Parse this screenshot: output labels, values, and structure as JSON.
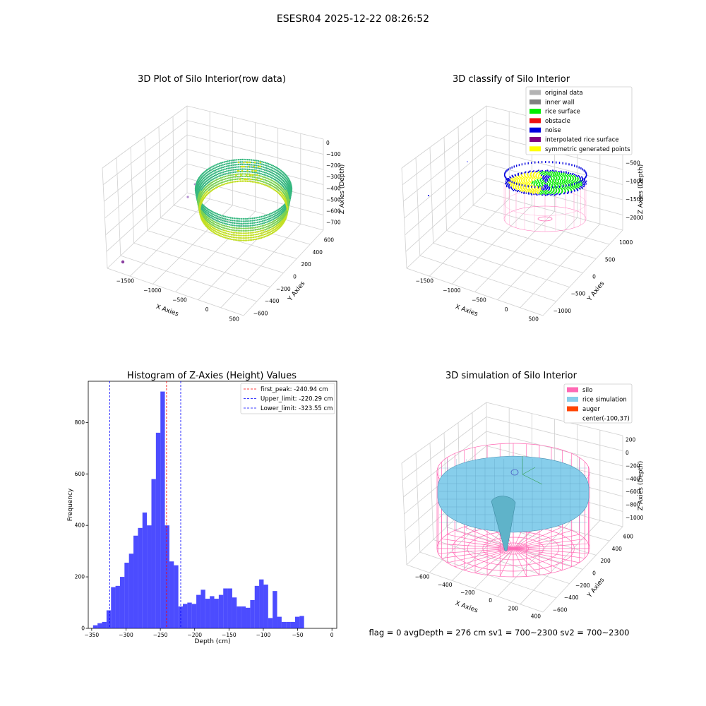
{
  "suptitle": "ESESR04 2025-12-22 08:26:52",
  "panels": {
    "raw": {
      "title": "3D Plot of Silo Interior(row data)",
      "xlabel": "X Axies",
      "ylabel": "Y Axies",
      "zlabel": "Z Axies (Depth)",
      "xticks": [
        "−1500",
        "−1000",
        "−500",
        "0",
        "500"
      ],
      "yticks": [
        "−600",
        "−400",
        "−200",
        "0",
        "200",
        "400",
        "600"
      ],
      "zticks": [
        "0",
        "−100",
        "−200",
        "−300",
        "−400",
        "−500",
        "−600",
        "−700"
      ]
    },
    "classify": {
      "title": "3D classify of Silo Interior",
      "xlabel": "X Axies",
      "ylabel": "Y Axies",
      "zlabel": "Z Axies (Depth)",
      "xticks": [
        "−1500",
        "−1000",
        "−500",
        "0",
        "500"
      ],
      "yticks": [
        "−1000",
        "−500",
        "0",
        "500",
        "1000"
      ],
      "zticks": [
        "0",
        "−500",
        "−1000",
        "−1500",
        "−2000"
      ],
      "legend": [
        {
          "label": "original data",
          "color": "#b3b3b3"
        },
        {
          "label": "inner wall",
          "color": "#808080"
        },
        {
          "label": "rice surface",
          "color": "#00ee00"
        },
        {
          "label": "obstacle",
          "color": "#ee1111"
        },
        {
          "label": "noise",
          "color": "#0000dd"
        },
        {
          "label": "interpolated rice surface",
          "color": "#800080"
        },
        {
          "label": "symmetric generated points",
          "color": "#ffff00"
        }
      ]
    },
    "simulation": {
      "title": "3D simulation of Silo Interior",
      "xlabel": "X Axies",
      "ylabel": "Y Axies",
      "zlabel": "Z Axies (Depth)",
      "xticks": [
        "−600",
        "−400",
        "−200",
        "0",
        "200",
        "400"
      ],
      "yticks": [
        "−600",
        "−400",
        "−200",
        "0",
        "200",
        "400",
        "600"
      ],
      "zticks": [
        "200",
        "0",
        "−200",
        "−400",
        "−600",
        "−800",
        "−1000"
      ],
      "legend": [
        {
          "label": "silo",
          "color": "#ff69b4"
        },
        {
          "label": "rice simulation",
          "color": "#87ceeb"
        },
        {
          "label": "auger",
          "color": "#ff4500"
        },
        {
          "label": "center(-100,37)",
          "color": ""
        }
      ],
      "footer": "flag = 0     avgDepth = 276 cm  sv1 = 700~2300  sv2 = 700~2300"
    }
  },
  "chart_data": {
    "type": "bar",
    "title": "Histogram of Z-Axies (Height) Values",
    "xlabel": "Depth (cm)",
    "ylabel": "Frequency",
    "xlim": [
      -355,
      7
    ],
    "ylim": [
      0,
      960
    ],
    "xticks": [
      -350,
      -300,
      -250,
      -200,
      -150,
      -100,
      -50,
      0
    ],
    "yticks": [
      0,
      200,
      400,
      600,
      800
    ],
    "bar_color": "#0000ff",
    "bins_start": -348,
    "bin_width": 6.54,
    "values": [
      12,
      20,
      25,
      70,
      160,
      165,
      200,
      255,
      290,
      360,
      390,
      450,
      400,
      580,
      760,
      920,
      400,
      260,
      245,
      85,
      95,
      100,
      95,
      130,
      150,
      115,
      125,
      115,
      130,
      155,
      155,
      120,
      85,
      85,
      80,
      110,
      165,
      190,
      170,
      40,
      145,
      45,
      25,
      25,
      25,
      45,
      48
    ],
    "vlines": [
      {
        "label": "first_peak: -240.94 cm",
        "x": -240.94,
        "color": "#ff0000"
      },
      {
        "label": "Upper_limit: -220.29 cm",
        "x": -220.29,
        "color": "#0000ff"
      },
      {
        "label": "Lower_limit: -323.55 cm",
        "x": -323.55,
        "color": "#0000ff"
      }
    ]
  }
}
